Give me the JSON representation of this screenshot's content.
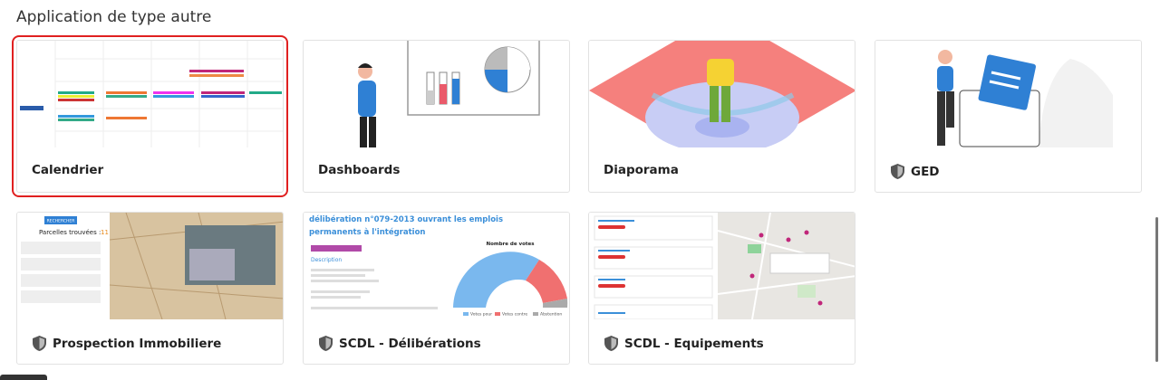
{
  "header": {
    "title": "Application de type autre"
  },
  "cards": [
    {
      "title": "Calendrier"
    },
    {
      "title": "Dashboards"
    },
    {
      "title": "Diaporama"
    },
    {
      "title": "GED"
    },
    {
      "title": "Prospection Immobiliere",
      "thumb": {
        "button": "RECHERCHER",
        "found": "Parcelles trouvées :",
        "count": "11"
      }
    },
    {
      "title": "SCDL - Délibérations",
      "thumb": {
        "heading": "délibération n°079-2013 ouvrant les emplois permanents à l'intégration",
        "section": "Description",
        "chart_title": "Nombre de votes",
        "legend": [
          "Votes pour",
          "Votes contre",
          "Abstention"
        ]
      }
    },
    {
      "title": "SCDL - Equipements"
    }
  ]
}
